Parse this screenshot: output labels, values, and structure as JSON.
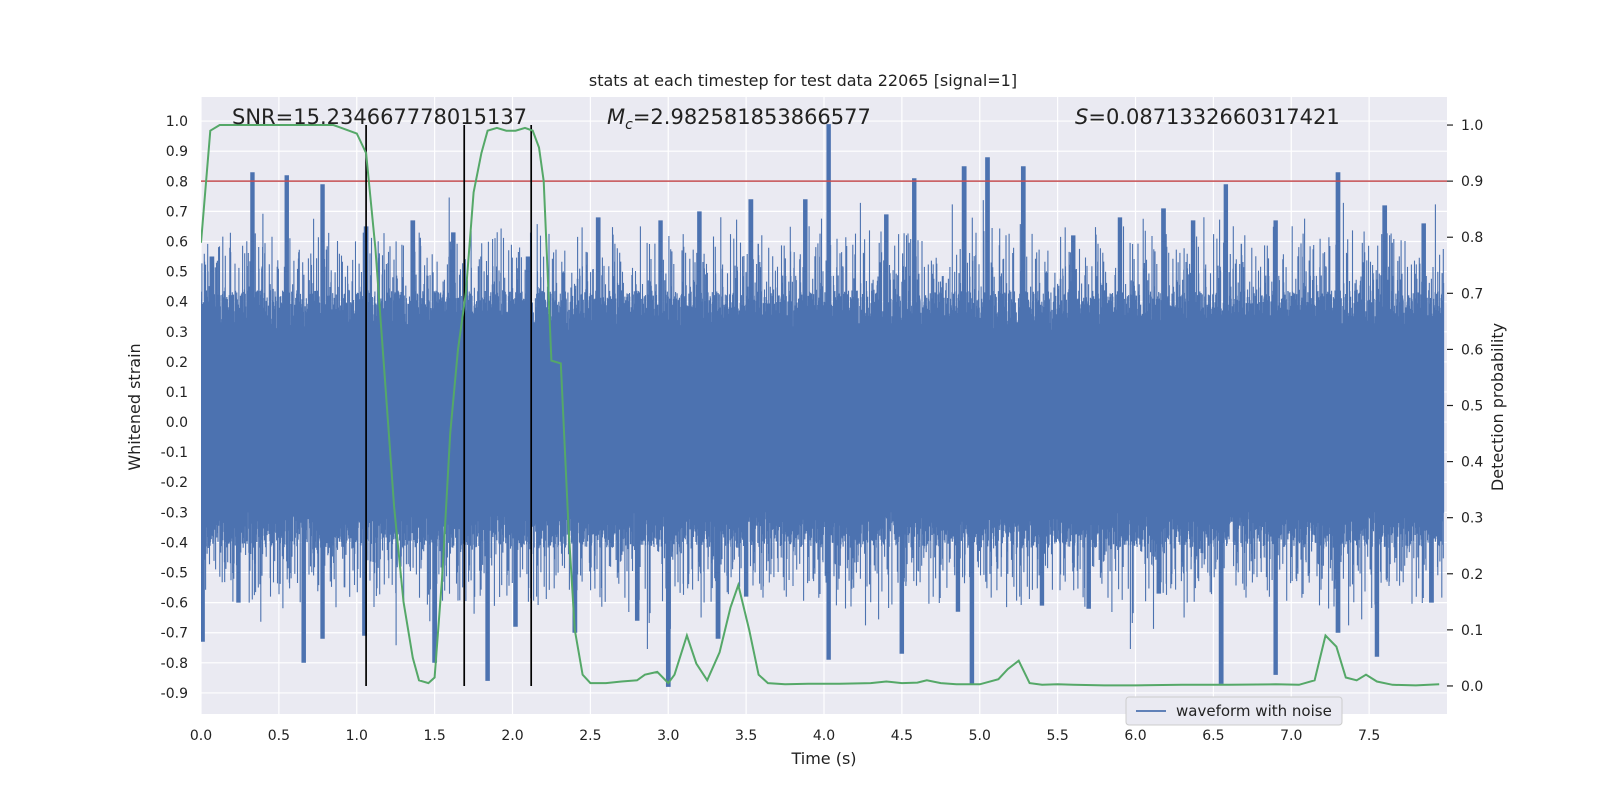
{
  "chart_data": {
    "type": "line",
    "title": "stats at each timestep for test data 22065 [signal=1]",
    "xlabel": "Time (s)",
    "ylabel": "Whitened strain",
    "y2label": "Detection probability",
    "xlim": [
      0.0,
      8.0
    ],
    "ylim": [
      -0.97,
      1.08
    ],
    "y2lim": [
      -0.05,
      1.05
    ],
    "xticks": [
      "0.0",
      "0.5",
      "1.0",
      "1.5",
      "2.0",
      "2.5",
      "3.0",
      "3.5",
      "4.0",
      "4.5",
      "5.0",
      "5.5",
      "6.0",
      "6.5",
      "7.0",
      "7.5"
    ],
    "yticks": [
      "1.0",
      "0.9",
      "0.8",
      "0.7",
      "0.6",
      "0.5",
      "0.4",
      "0.3",
      "0.2",
      "0.1",
      "0.0",
      "-0.1",
      "-0.2",
      "-0.3",
      "-0.4",
      "-0.5",
      "-0.6",
      "-0.7",
      "-0.8",
      "-0.9"
    ],
    "y2ticks": [
      "1.0",
      "0.9",
      "0.8",
      "0.7",
      "0.6",
      "0.5",
      "0.4",
      "0.3",
      "0.2",
      "0.1",
      "0.0"
    ],
    "grid": true,
    "legend_position": "lower-right",
    "annotations": {
      "snr": "SNR=15.234667778015137",
      "mc_symbol": "M",
      "mc_sub": "c",
      "mc_value": "=2.982581853866577",
      "s_symbol": "S",
      "s_value": "=0.0871332660317421"
    },
    "series": [
      {
        "name": "waveform with noise",
        "color": "#4c72b0",
        "axis": "left",
        "description_type": "dense-noise",
        "envelope": {
          "core_upper": 0.34,
          "core_lower": -0.32,
          "spike_upper": [
            {
              "x": 0.07,
              "y": 0.55
            },
            {
              "x": 0.33,
              "y": 0.83
            },
            {
              "x": 0.55,
              "y": 0.82
            },
            {
              "x": 0.78,
              "y": 0.79
            },
            {
              "x": 1.06,
              "y": 0.65
            },
            {
              "x": 1.36,
              "y": 0.67
            },
            {
              "x": 1.62,
              "y": 0.63
            },
            {
              "x": 2.1,
              "y": 0.55
            },
            {
              "x": 2.55,
              "y": 0.68
            },
            {
              "x": 2.95,
              "y": 0.67
            },
            {
              "x": 3.2,
              "y": 0.7
            },
            {
              "x": 3.53,
              "y": 0.74
            },
            {
              "x": 3.88,
              "y": 0.74
            },
            {
              "x": 4.03,
              "y": 0.99
            },
            {
              "x": 4.4,
              "y": 0.69
            },
            {
              "x": 4.58,
              "y": 0.81
            },
            {
              "x": 4.9,
              "y": 0.85
            },
            {
              "x": 5.05,
              "y": 0.88
            },
            {
              "x": 5.28,
              "y": 0.85
            },
            {
              "x": 5.6,
              "y": 0.62
            },
            {
              "x": 5.9,
              "y": 0.68
            },
            {
              "x": 6.18,
              "y": 0.71
            },
            {
              "x": 6.37,
              "y": 0.67
            },
            {
              "x": 6.58,
              "y": 0.79
            },
            {
              "x": 6.9,
              "y": 0.67
            },
            {
              "x": 7.3,
              "y": 0.83
            },
            {
              "x": 7.6,
              "y": 0.72
            },
            {
              "x": 7.85,
              "y": 0.66
            }
          ],
          "spike_lower": [
            {
              "x": 0.01,
              "y": -0.73
            },
            {
              "x": 0.24,
              "y": -0.6
            },
            {
              "x": 0.66,
              "y": -0.8
            },
            {
              "x": 0.78,
              "y": -0.72
            },
            {
              "x": 1.05,
              "y": -0.71
            },
            {
              "x": 1.5,
              "y": -0.8
            },
            {
              "x": 1.84,
              "y": -0.86
            },
            {
              "x": 2.02,
              "y": -0.68
            },
            {
              "x": 2.4,
              "y": -0.7
            },
            {
              "x": 2.8,
              "y": -0.66
            },
            {
              "x": 3.0,
              "y": -0.88
            },
            {
              "x": 3.32,
              "y": -0.72
            },
            {
              "x": 3.5,
              "y": -0.58
            },
            {
              "x": 4.03,
              "y": -0.79
            },
            {
              "x": 4.5,
              "y": -0.77
            },
            {
              "x": 4.86,
              "y": -0.63
            },
            {
              "x": 4.95,
              "y": -0.87
            },
            {
              "x": 5.4,
              "y": -0.61
            },
            {
              "x": 5.7,
              "y": -0.62
            },
            {
              "x": 6.15,
              "y": -0.57
            },
            {
              "x": 6.55,
              "y": -0.87
            },
            {
              "x": 6.9,
              "y": -0.84
            },
            {
              "x": 7.3,
              "y": -0.7
            },
            {
              "x": 7.55,
              "y": -0.78
            },
            {
              "x": 7.9,
              "y": -0.6
            }
          ]
        }
      },
      {
        "name": "",
        "color": "#55a868",
        "axis": "right",
        "points": [
          [
            0.0,
            0.79
          ],
          [
            0.06,
            0.99
          ],
          [
            0.12,
            1.0
          ],
          [
            0.3,
            1.0
          ],
          [
            0.5,
            1.0
          ],
          [
            0.7,
            1.0
          ],
          [
            0.85,
            1.0
          ],
          [
            0.95,
            0.99
          ],
          [
            1.0,
            0.985
          ],
          [
            1.06,
            0.95
          ],
          [
            1.12,
            0.78
          ],
          [
            1.18,
            0.55
          ],
          [
            1.24,
            0.32
          ],
          [
            1.3,
            0.15
          ],
          [
            1.36,
            0.05
          ],
          [
            1.4,
            0.01
          ],
          [
            1.46,
            0.005
          ],
          [
            1.5,
            0.015
          ],
          [
            1.55,
            0.2
          ],
          [
            1.6,
            0.45
          ],
          [
            1.65,
            0.6
          ],
          [
            1.7,
            0.7
          ],
          [
            1.75,
            0.88
          ],
          [
            1.8,
            0.95
          ],
          [
            1.84,
            0.99
          ],
          [
            1.9,
            0.995
          ],
          [
            1.96,
            0.99
          ],
          [
            2.02,
            0.99
          ],
          [
            2.08,
            0.995
          ],
          [
            2.13,
            0.99
          ],
          [
            2.17,
            0.96
          ],
          [
            2.2,
            0.9
          ],
          [
            2.25,
            0.58
          ],
          [
            2.31,
            0.575
          ],
          [
            2.36,
            0.28
          ],
          [
            2.4,
            0.1
          ],
          [
            2.45,
            0.02
          ],
          [
            2.5,
            0.005
          ],
          [
            2.6,
            0.005
          ],
          [
            2.7,
            0.008
          ],
          [
            2.8,
            0.01
          ],
          [
            2.85,
            0.02
          ],
          [
            2.93,
            0.025
          ],
          [
            3.0,
            0.005
          ],
          [
            3.04,
            0.02
          ],
          [
            3.12,
            0.09
          ],
          [
            3.18,
            0.04
          ],
          [
            3.25,
            0.01
          ],
          [
            3.33,
            0.06
          ],
          [
            3.4,
            0.14
          ],
          [
            3.45,
            0.18
          ],
          [
            3.52,
            0.1
          ],
          [
            3.58,
            0.02
          ],
          [
            3.64,
            0.005
          ],
          [
            3.75,
            0.003
          ],
          [
            3.9,
            0.004
          ],
          [
            4.1,
            0.004
          ],
          [
            4.3,
            0.005
          ],
          [
            4.4,
            0.008
          ],
          [
            4.5,
            0.005
          ],
          [
            4.6,
            0.006
          ],
          [
            4.66,
            0.01
          ],
          [
            4.75,
            0.005
          ],
          [
            4.85,
            0.003
          ],
          [
            5.0,
            0.003
          ],
          [
            5.12,
            0.012
          ],
          [
            5.18,
            0.03
          ],
          [
            5.25,
            0.045
          ],
          [
            5.32,
            0.005
          ],
          [
            5.4,
            0.002
          ],
          [
            5.5,
            0.003
          ],
          [
            5.6,
            0.002
          ],
          [
            5.8,
            0.001
          ],
          [
            6.0,
            0.001
          ],
          [
            6.3,
            0.002
          ],
          [
            6.6,
            0.002
          ],
          [
            6.9,
            0.003
          ],
          [
            7.05,
            0.002
          ],
          [
            7.15,
            0.01
          ],
          [
            7.22,
            0.09
          ],
          [
            7.29,
            0.07
          ],
          [
            7.35,
            0.015
          ],
          [
            7.42,
            0.01
          ],
          [
            7.48,
            0.02
          ],
          [
            7.55,
            0.008
          ],
          [
            7.65,
            0.002
          ],
          [
            7.8,
            0.001
          ],
          [
            7.95,
            0.003
          ]
        ]
      },
      {
        "name": "",
        "color": "#c44e52",
        "axis": "right",
        "type": "hline",
        "y": 0.9
      }
    ],
    "vlines": [
      1.06,
      1.69,
      2.12
    ],
    "vline_color": "#000000",
    "background_color": "#eaeaf2",
    "grid_color": "#ffffff"
  }
}
